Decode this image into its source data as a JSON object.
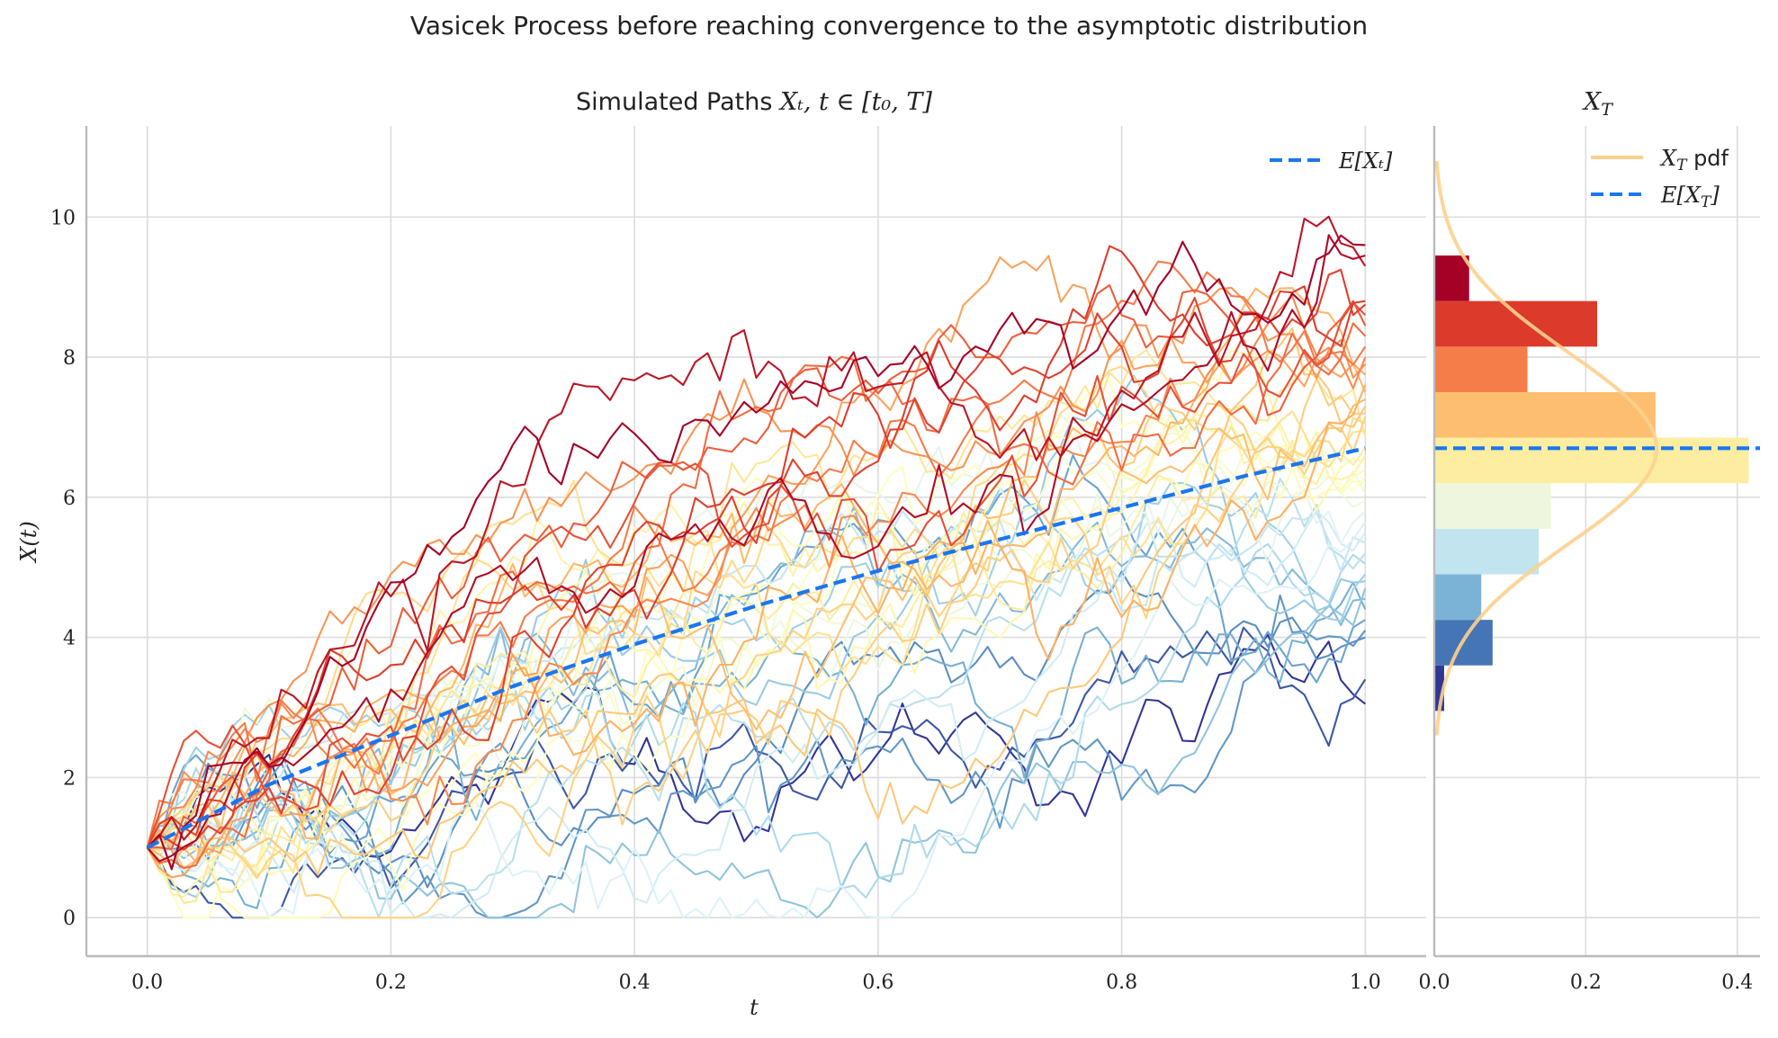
{
  "title": "Vasicek Process before reaching convergence to the asymptotic distribution",
  "chart_data": [
    {
      "type": "line",
      "title": {
        "prefix": "Simulated Paths ",
        "math": "Xₜ, t ∈ [t₀, T]"
      },
      "xlabel": "t",
      "ylabel": "X(t)",
      "xlim": [
        -0.05,
        1.05
      ],
      "ylim": [
        -0.55,
        11.3
      ],
      "xticks": [
        "0.0",
        "0.2",
        "0.4",
        "0.6",
        "0.8",
        "1.0"
      ],
      "yticks": [
        "0",
        "2",
        "4",
        "6",
        "8",
        "10"
      ],
      "grid": true,
      "legend": {
        "placement": "upper right",
        "entries": [
          "E[Xₜ]"
        ]
      },
      "x0": 0.0,
      "x1": 1.0,
      "n_steps": 100,
      "x0_value": 1.0,
      "paths_end_values": [
        9.6,
        9.45,
        9.3,
        8.8,
        8.75,
        8.6,
        8.45,
        8.3,
        8.15,
        8.0,
        7.9,
        7.75,
        7.6,
        7.5,
        7.4,
        7.3,
        7.2,
        7.15,
        7.05,
        6.95,
        6.85,
        6.7,
        6.6,
        6.5,
        6.4,
        6.3,
        6.2,
        6.05,
        5.95,
        5.8,
        5.65,
        5.5,
        5.35,
        5.2,
        5.05,
        4.9,
        4.8,
        4.7,
        4.55,
        4.4,
        4.25,
        4.1,
        4.0,
        3.4,
        3.05
      ],
      "mean_series": {
        "name": "E[Xₜ]",
        "x": [
          0.0,
          0.1,
          0.2,
          0.3,
          0.4,
          0.5,
          0.6,
          0.7,
          0.8,
          0.9,
          1.0
        ],
        "y": [
          1.0,
          1.9,
          2.6,
          3.3,
          3.9,
          4.45,
          4.95,
          5.4,
          5.85,
          6.3,
          6.7
        ]
      },
      "colors": {
        "colormap": [
          "#313695",
          "#4575b4",
          "#74add1",
          "#abd9e9",
          "#e0f3f8",
          "#ffffbf",
          "#fee090",
          "#fdae61",
          "#f46d43",
          "#d73027",
          "#a50026"
        ],
        "mean_line": "#1a76f0"
      }
    },
    {
      "type": "bar",
      "orientation": "horizontal",
      "title": "X_T",
      "xlim": [
        0.0,
        0.43
      ],
      "xticks": [
        "0.0",
        "0.2",
        "0.4"
      ],
      "bins": [
        {
          "from": 2.95,
          "to": 3.6,
          "density": 0.013,
          "color": "#313695"
        },
        {
          "from": 3.6,
          "to": 4.25,
          "density": 0.077,
          "color": "#4575b4"
        },
        {
          "from": 4.25,
          "to": 4.9,
          "density": 0.062,
          "color": "#7bb3d6"
        },
        {
          "from": 4.9,
          "to": 5.55,
          "density": 0.138,
          "color": "#c2e4ee"
        },
        {
          "from": 5.55,
          "to": 6.2,
          "density": 0.154,
          "color": "#eef7de"
        },
        {
          "from": 6.2,
          "to": 6.85,
          "density": 0.415,
          "color": "#fdeda0"
        },
        {
          "from": 6.85,
          "to": 7.5,
          "density": 0.292,
          "color": "#fdbe6f"
        },
        {
          "from": 7.5,
          "to": 8.15,
          "density": 0.123,
          "color": "#f47d4a"
        },
        {
          "from": 8.15,
          "to": 8.8,
          "density": 0.215,
          "color": "#dc3a2a"
        },
        {
          "from": 8.8,
          "to": 9.45,
          "density": 0.046,
          "color": "#a50026"
        }
      ],
      "pdf": {
        "name": "X_T pdf",
        "mean": 6.7,
        "std": 1.36,
        "y_range": [
          2.6,
          10.8
        ],
        "color": "#fdd08e"
      },
      "mean_line": {
        "name": "E[X_T]",
        "value": 6.7,
        "color": "#1a76f0"
      },
      "legend": {
        "placement": "upper right",
        "entries": [
          "X_T pdf",
          "E[X_T]"
        ]
      }
    }
  ]
}
